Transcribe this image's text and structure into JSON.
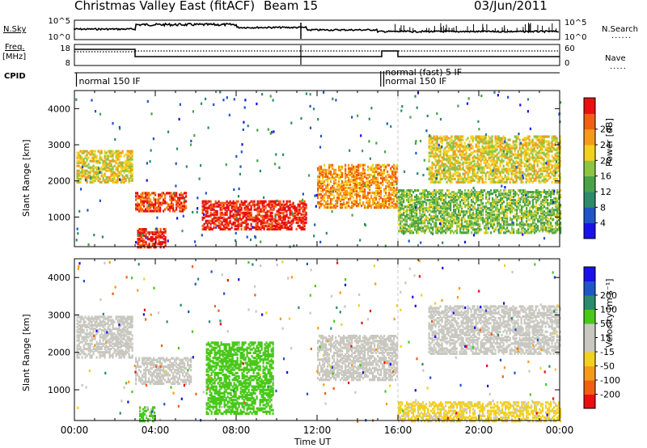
{
  "header": {
    "title": "Christmas Valley East (fitACF)",
    "beam": "Beam 15",
    "date": "03/Jun/2011"
  },
  "meta_panels": {
    "nsky_label": "N.Sky",
    "nsearch_label": "N.Search",
    "noise_ticks_left": [
      "10^5",
      "10^0"
    ],
    "noise_ticks_right": [
      "10^5",
      "10^0"
    ],
    "freq_label_1": "Freq.",
    "freq_label_2": "[MHz]",
    "freq_ticks": [
      "18",
      "8"
    ],
    "nave_label": "Nave",
    "nave_ticks": [
      "60",
      "0"
    ],
    "cpid_label": "CPID",
    "cpid_entries": [
      {
        "text": "normal 150 IF",
        "hour": 0.1
      },
      {
        "text": "normal (fast) 5 IF",
        "hour": 15.25
      },
      {
        "text": "normal 150 IF",
        "hour": 15.25
      }
    ]
  },
  "axes": {
    "xlabel": "Time UT",
    "x_ticks": [
      "00:00",
      "04:00",
      "08:00",
      "12:00",
      "16:00",
      "20:00",
      "00:00"
    ],
    "ylabel_html": "Slant Range [km]",
    "y_ticks": [
      "1000",
      "2000",
      "3000",
      "4000"
    ]
  },
  "colorbars": {
    "power": {
      "label": "Power [dB]",
      "ticks": [
        "4",
        "8",
        "12",
        "16",
        "20",
        "24",
        "28"
      ],
      "colors": [
        "#1a10e8",
        "#1f55c8",
        "#2d8a6a",
        "#49a24a",
        "#8fc440",
        "#f2d020",
        "#f59a1a",
        "#f06010",
        "#e81010"
      ]
    },
    "velocity": {
      "label": "Velocity [m s⁻¹]",
      "ticks": [
        "-200",
        "-100",
        "-50",
        "-15",
        "15",
        "50",
        "100",
        "200"
      ],
      "colors": [
        "#e81010",
        "#f06010",
        "#f59a1a",
        "#f2d020",
        "#c8c8c0",
        "#c8c8c0",
        "#49c81a",
        "#2d8a6a",
        "#1f55c8",
        "#1a10e8"
      ]
    }
  },
  "chart_data": [
    {
      "type": "heatmap",
      "title": "Power",
      "xlabel": "Time UT",
      "ylabel": "Slant Range [km]",
      "xlim": [
        0,
        24
      ],
      "ylim": [
        180,
        4500
      ],
      "colorbar_label": "Power [dB]",
      "colorbar_range": [
        0,
        30
      ],
      "features": [
        {
          "t0": 0.1,
          "t1": 2.9,
          "r0": 2000,
          "r1": 2900,
          "power_db": 18
        },
        {
          "t0": 3.0,
          "t1": 5.5,
          "r0": 1200,
          "r1": 1700,
          "power_db": 26
        },
        {
          "t0": 3.1,
          "t1": 4.5,
          "r0": 200,
          "r1": 700,
          "power_db": 28
        },
        {
          "t0": 6.3,
          "t1": 11.5,
          "r0": 700,
          "r1": 1500,
          "power_db": 28
        },
        {
          "t0": 12.0,
          "t1": 16.0,
          "r0": 1300,
          "r1": 2500,
          "power_db": 22
        },
        {
          "t0": 16.0,
          "t1": 24.0,
          "r0": 600,
          "r1": 1800,
          "power_db": 14
        },
        {
          "t0": 17.5,
          "t1": 24.0,
          "r0": 2000,
          "r1": 3300,
          "power_db": 18
        }
      ]
    },
    {
      "type": "heatmap",
      "title": "Velocity",
      "xlabel": "Time UT",
      "ylabel": "Slant Range [km]",
      "xlim": [
        0,
        24
      ],
      "ylim": [
        180,
        4500
      ],
      "colorbar_label": "Velocity [m s-1]",
      "colorbar_range": [
        -250,
        250
      ],
      "features": [
        {
          "t0": 0.1,
          "t1": 2.9,
          "r0": 1900,
          "r1": 3000,
          "velocity": 0
        },
        {
          "t0": 3.0,
          "t1": 5.8,
          "r0": 1200,
          "r1": 1900,
          "velocity": 5
        },
        {
          "t0": 6.5,
          "t1": 9.8,
          "r0": 400,
          "r1": 2300,
          "velocity": 70
        },
        {
          "t0": 3.2,
          "t1": 4.0,
          "r0": 200,
          "r1": 600,
          "velocity": 60
        },
        {
          "t0": 12.0,
          "t1": 16.0,
          "r0": 1300,
          "r1": 2500,
          "velocity": 5
        },
        {
          "t0": 16.0,
          "t1": 24.0,
          "r0": 200,
          "r1": 700,
          "velocity": -60
        },
        {
          "t0": 17.5,
          "t1": 24.0,
          "r0": 2000,
          "r1": 3300,
          "velocity": 0
        }
      ]
    }
  ]
}
